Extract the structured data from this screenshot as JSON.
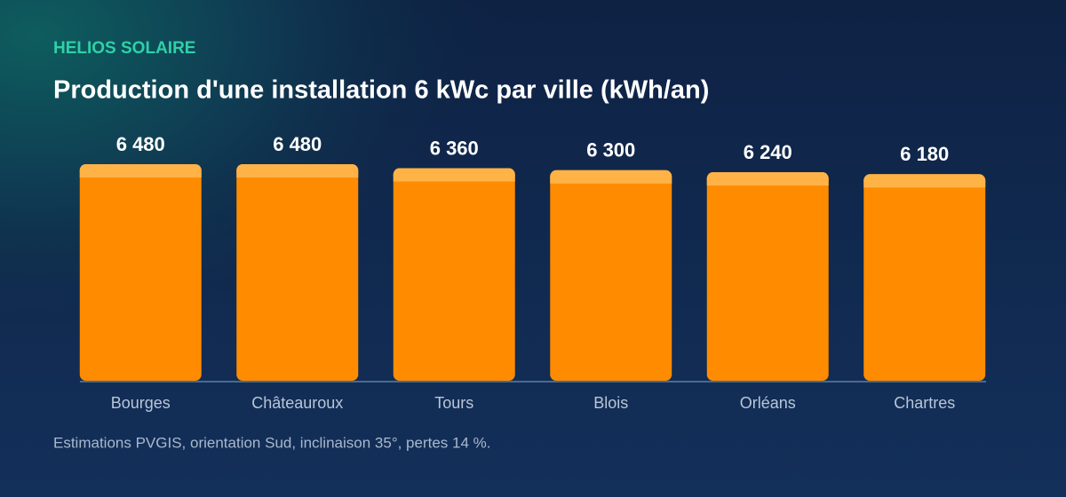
{
  "chart_data": {
    "type": "bar",
    "brand": "HELIOS SOLAIRE",
    "title": "Production d'une installation 6 kWc par ville (kWh/an)",
    "categories": [
      "Bourges",
      "Châteauroux",
      "Tours",
      "Blois",
      "Orléans",
      "Chartres"
    ],
    "values": [
      6480,
      6480,
      6360,
      6300,
      6240,
      6180
    ],
    "value_labels": [
      "6 480",
      "6 480",
      "6 360",
      "6 300",
      "6 240",
      "6 180"
    ],
    "color": "#ff8c00",
    "ylim": [
      0,
      6480
    ],
    "footnote": "Estimations PVGIS, orientation Sud, inclinaison 35°, pertes 14 %."
  }
}
